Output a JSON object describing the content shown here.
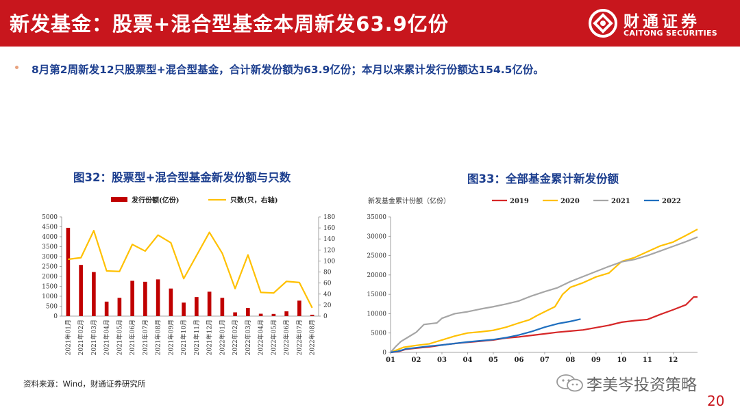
{
  "header": {
    "title": "新发基金：股票+混合型基金本周新发63.9亿份"
  },
  "brand": {
    "name": "财通证券",
    "sub": "CAITONG SECURITIES"
  },
  "summary": "8月第2周新发12只股票型+混合型基金，合计新发份额为63.9亿份；本月以来累计发行份额达154.5亿份。",
  "source": "资料来源：Wind，财通证券研究所",
  "watermark": "李美岑投资策略",
  "page_number": "20",
  "colors": {
    "brand_red": "#c8161d",
    "title_blue": "#1d3f8f",
    "bar": "#c00000",
    "line": "#ffc000",
    "y2019": "#d62728",
    "y2020": "#ffc000",
    "y2021": "#a6a6a6",
    "y2022": "#1f6fbf"
  },
  "chart_data": [
    {
      "type": "bar",
      "title": "图32：股票型+混合型基金新发份额与只数",
      "categories": [
        "2021年01月",
        "2021年02月",
        "2021年03月",
        "2021年04月",
        "2021年05月",
        "2021年06月",
        "2021年07月",
        "2021年08月",
        "2021年09月",
        "2021年10月",
        "2021年11月",
        "2021年12月",
        "2022年01月",
        "2022年02月",
        "2022年03月",
        "2022年04月",
        "2022年05月",
        "2022年06月",
        "2022年07月",
        "2022年08月"
      ],
      "series": [
        {
          "name": "发行份额(亿份)",
          "axis": "left",
          "type": "bar",
          "values": [
            4450,
            2580,
            2220,
            730,
            920,
            1780,
            1730,
            1850,
            1390,
            680,
            960,
            1230,
            920,
            190,
            410,
            120,
            110,
            240,
            780,
            70
          ]
        },
        {
          "name": "只数(只，右轴)",
          "axis": "right",
          "type": "line",
          "values": [
            103,
            106,
            155,
            82,
            81,
            130,
            118,
            147,
            133,
            68,
            110,
            152,
            114,
            50,
            111,
            43,
            42,
            63,
            61,
            15
          ]
        }
      ],
      "y_left": {
        "min": 0,
        "max": 5000,
        "step": 500
      },
      "y_right": {
        "min": 0,
        "max": 180,
        "step": 20
      },
      "legend": "top"
    },
    {
      "type": "line",
      "title": "图33：全部基金累计新发份额",
      "ylabel": "新发基金累计份额（亿份）",
      "x_ticks": [
        "01",
        "02",
        "03",
        "04",
        "05",
        "06",
        "07",
        "08",
        "09",
        "10",
        "11",
        "12"
      ],
      "y_range": [
        0,
        35000
      ],
      "y_step": 5000,
      "legend": "top",
      "series": [
        {
          "name": "2019",
          "points": [
            [
              1,
              0
            ],
            [
              1.3,
              200
            ],
            [
              1.6,
              800
            ],
            [
              2,
              1100
            ],
            [
              2.5,
              1400
            ],
            [
              3,
              1900
            ],
            [
              3.5,
              2300
            ],
            [
              4,
              2600
            ],
            [
              4.5,
              2900
            ],
            [
              5,
              3200
            ],
            [
              5.5,
              3700
            ],
            [
              6,
              4000
            ],
            [
              6.5,
              4400
            ],
            [
              7,
              4800
            ],
            [
              7.5,
              5200
            ],
            [
              8,
              5500
            ],
            [
              8.5,
              5800
            ],
            [
              9,
              6400
            ],
            [
              9.5,
              7000
            ],
            [
              10,
              7800
            ],
            [
              10.5,
              8200
            ],
            [
              11,
              8500
            ],
            [
              11.5,
              9800
            ],
            [
              12,
              11000
            ],
            [
              12.5,
              12300
            ],
            [
              12.8,
              14300
            ],
            [
              12.95,
              14300
            ]
          ]
        },
        {
          "name": "2020",
          "points": [
            [
              1,
              0
            ],
            [
              1.2,
              500
            ],
            [
              1.5,
              1300
            ],
            [
              2,
              1800
            ],
            [
              2.5,
              2200
            ],
            [
              3,
              3200
            ],
            [
              3.5,
              4200
            ],
            [
              4,
              5000
            ],
            [
              4.5,
              5300
            ],
            [
              5,
              5700
            ],
            [
              5.5,
              6500
            ],
            [
              6,
              7600
            ],
            [
              6.4,
              8400
            ],
            [
              6.7,
              9500
            ],
            [
              7,
              10500
            ],
            [
              7.4,
              11800
            ],
            [
              7.7,
              15000
            ],
            [
              8,
              16800
            ],
            [
              8.5,
              18000
            ],
            [
              9,
              19500
            ],
            [
              9.5,
              20500
            ],
            [
              10,
              23500
            ],
            [
              10.5,
              24500
            ],
            [
              11,
              26000
            ],
            [
              11.5,
              27500
            ],
            [
              12,
              28500
            ],
            [
              12.5,
              30200
            ],
            [
              12.95,
              31800
            ]
          ]
        },
        {
          "name": "2021",
          "points": [
            [
              1,
              0
            ],
            [
              1.2,
              1500
            ],
            [
              1.4,
              2800
            ],
            [
              1.7,
              4000
            ],
            [
              2,
              5200
            ],
            [
              2.3,
              7200
            ],
            [
              2.8,
              7600
            ],
            [
              3,
              8800
            ],
            [
              3.5,
              10000
            ],
            [
              4,
              10500
            ],
            [
              4.5,
              11200
            ],
            [
              5,
              11800
            ],
            [
              5.5,
              12500
            ],
            [
              6,
              13300
            ],
            [
              6.5,
              14600
            ],
            [
              7,
              15700
            ],
            [
              7.5,
              16700
            ],
            [
              8,
              18300
            ],
            [
              8.5,
              19600
            ],
            [
              9,
              20900
            ],
            [
              9.5,
              22200
            ],
            [
              10,
              23400
            ],
            [
              10.5,
              24000
            ],
            [
              11,
              25000
            ],
            [
              11.5,
              26200
            ],
            [
              12,
              27400
            ],
            [
              12.5,
              28600
            ],
            [
              12.95,
              29800
            ]
          ]
        },
        {
          "name": "2022",
          "points": [
            [
              1,
              0
            ],
            [
              1.3,
              300
            ],
            [
              1.6,
              900
            ],
            [
              2,
              1200
            ],
            [
              2.5,
              1600
            ],
            [
              3,
              1900
            ],
            [
              3.5,
              2300
            ],
            [
              4,
              2700
            ],
            [
              4.5,
              3000
            ],
            [
              5,
              3300
            ],
            [
              5.5,
              3800
            ],
            [
              6,
              4500
            ],
            [
              6.5,
              5400
            ],
            [
              7,
              6500
            ],
            [
              7.5,
              7400
            ],
            [
              8,
              8000
            ],
            [
              8.4,
              8600
            ]
          ]
        }
      ]
    }
  ]
}
